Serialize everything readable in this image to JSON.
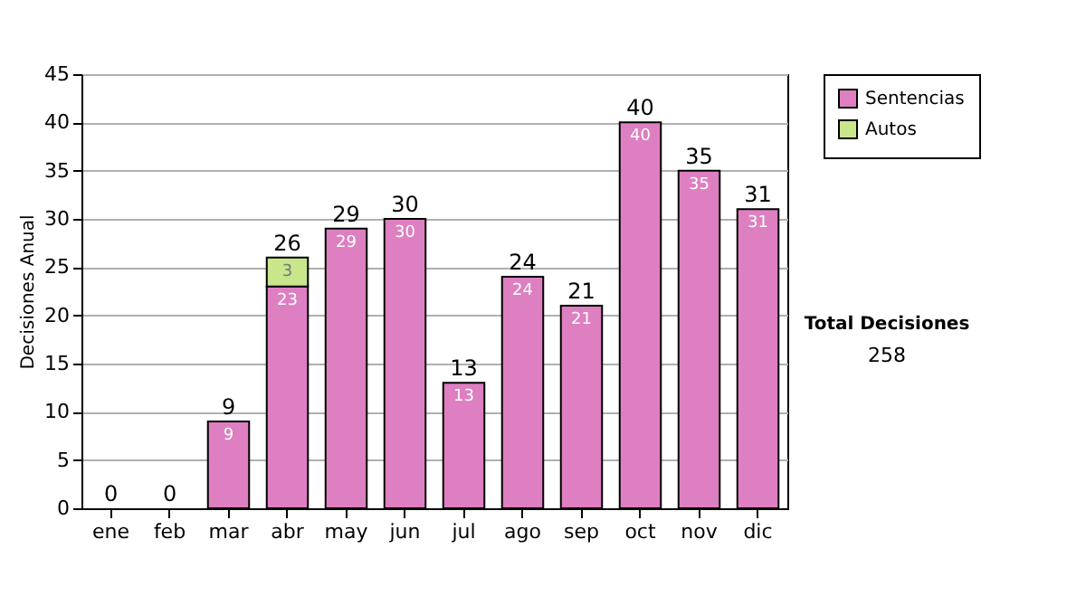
{
  "chart_data": {
    "type": "bar",
    "stacked": true,
    "ylabel": "Decisiones Anual",
    "categories": [
      "ene",
      "feb",
      "mar",
      "abr",
      "may",
      "jun",
      "jul",
      "ago",
      "sep",
      "oct",
      "nov",
      "dic"
    ],
    "series": [
      {
        "name": "Sentencias",
        "color": "#dd7fc0",
        "values": [
          0,
          0,
          9,
          23,
          29,
          30,
          13,
          24,
          21,
          40,
          35,
          31
        ],
        "value_labels": [
          null,
          null,
          "9",
          "23",
          "29",
          "30",
          "13",
          "24",
          "21",
          "40",
          "35",
          "31"
        ]
      },
      {
        "name": "Autos",
        "color": "#c8e68c",
        "values": [
          null,
          null,
          null,
          3,
          null,
          null,
          null,
          null,
          null,
          null,
          null,
          null
        ],
        "value_labels": [
          null,
          null,
          null,
          "3",
          null,
          null,
          null,
          null,
          null,
          null,
          null,
          null
        ]
      }
    ],
    "totals": [
      "0",
      "0",
      "9",
      "26",
      "29",
      "30",
      "13",
      "24",
      "21",
      "40",
      "35",
      "31"
    ],
    "ylim": [
      0,
      45
    ],
    "yticks": [
      0,
      5,
      10,
      15,
      20,
      25,
      30,
      35,
      40,
      45
    ],
    "grid": "y",
    "legend": "right",
    "annotations": [
      "Total Decisiones",
      "258"
    ]
  }
}
